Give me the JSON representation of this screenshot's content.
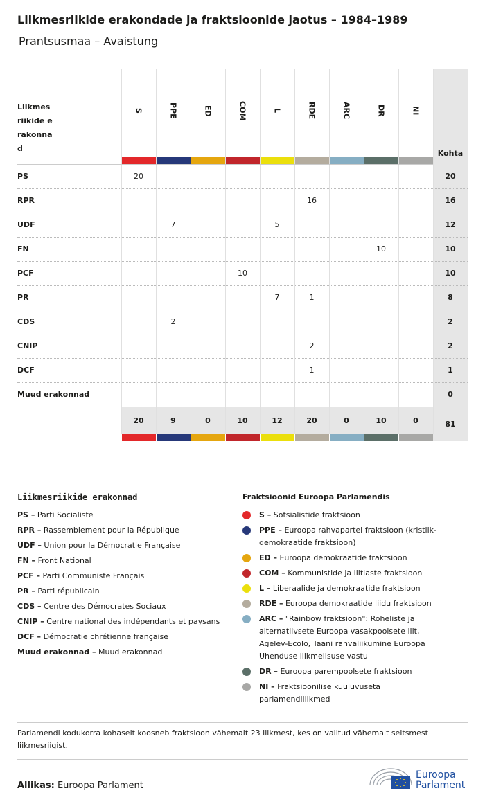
{
  "header": {
    "title": "Liikmesriikide erakondade ja fraktsioonide jaotus – 1984–1989",
    "subtitle": "Prantsusmaa – Avaistung"
  },
  "table": {
    "corner": "Liikmesriikide erakonnad",
    "total_header": "Kohta",
    "groups": [
      {
        "code": "S",
        "color": "#e3282a"
      },
      {
        "code": "PPE",
        "color": "#263879"
      },
      {
        "code": "ED",
        "color": "#e5a60f"
      },
      {
        "code": "COM",
        "color": "#c1262b"
      },
      {
        "code": "L",
        "color": "#ebdf0c"
      },
      {
        "code": "RDE",
        "color": "#b4ac9e"
      },
      {
        "code": "ARC",
        "color": "#86aec3"
      },
      {
        "code": "DR",
        "color": "#5b6f68"
      },
      {
        "code": "NI",
        "color": "#a8a8a6"
      }
    ],
    "rows": [
      {
        "party": "PS",
        "cells": [
          20,
          null,
          null,
          null,
          null,
          null,
          null,
          null,
          null
        ],
        "total": 20
      },
      {
        "party": "RPR",
        "cells": [
          null,
          null,
          null,
          null,
          null,
          16,
          null,
          null,
          null
        ],
        "total": 16
      },
      {
        "party": "UDF",
        "cells": [
          null,
          7,
          null,
          null,
          5,
          null,
          null,
          null,
          null
        ],
        "total": 12
      },
      {
        "party": "FN",
        "cells": [
          null,
          null,
          null,
          null,
          null,
          null,
          null,
          10,
          null
        ],
        "total": 10
      },
      {
        "party": "PCF",
        "cells": [
          null,
          null,
          null,
          10,
          null,
          null,
          null,
          null,
          null
        ],
        "total": 10
      },
      {
        "party": "PR",
        "cells": [
          null,
          null,
          null,
          null,
          7,
          1,
          null,
          null,
          null
        ],
        "total": 8
      },
      {
        "party": "CDS",
        "cells": [
          null,
          2,
          null,
          null,
          null,
          null,
          null,
          null,
          null
        ],
        "total": 2
      },
      {
        "party": "CNIP",
        "cells": [
          null,
          null,
          null,
          null,
          null,
          2,
          null,
          null,
          null
        ],
        "total": 2
      },
      {
        "party": "DCF",
        "cells": [
          null,
          null,
          null,
          null,
          null,
          1,
          null,
          null,
          null
        ],
        "total": 1
      },
      {
        "party": "Muud erakonnad",
        "cells": [
          null,
          null,
          null,
          null,
          null,
          null,
          null,
          null,
          null
        ],
        "total": 0
      }
    ],
    "totals": [
      20,
      9,
      0,
      10,
      12,
      20,
      0,
      10,
      0
    ],
    "grand_total": 81
  },
  "party_legend": {
    "title": "Liikmesriikide erakonnad",
    "items": [
      {
        "label": "PS –",
        "name": "Parti Socialiste"
      },
      {
        "label": "RPR –",
        "name": "Rassemblement pour la République"
      },
      {
        "label": "UDF –",
        "name": "Union pour la Démocratie Française"
      },
      {
        "label": "FN –",
        "name": "Front National"
      },
      {
        "label": "PCF –",
        "name": "Parti Communiste Français"
      },
      {
        "label": "PR –",
        "name": "Parti républicain"
      },
      {
        "label": "CDS –",
        "name": "Centre des Démocrates Sociaux"
      },
      {
        "label": "CNIP –",
        "name": "Centre national des indépendants et paysans"
      },
      {
        "label": "DCF –",
        "name": "Démocratie chrétienne française"
      },
      {
        "label": "Muud erakonnad –",
        "name": "Muud erakonnad"
      }
    ]
  },
  "group_legend": {
    "title": "Fraktsioonid Euroopa Parlamendis",
    "items": [
      {
        "label": "S –",
        "name": "Sotsialistide fraktsioon"
      },
      {
        "label": "PPE –",
        "name": "Euroopa rahvapartei fraktsioon (kristlik-demokraatide fraktsioon)"
      },
      {
        "label": "ED –",
        "name": "Euroopa demokraatide fraktsioon"
      },
      {
        "label": "COM –",
        "name": "Kommunistide ja liitlaste fraktsioon"
      },
      {
        "label": "L –",
        "name": "Liberaalide ja demokraatide fraktsioon"
      },
      {
        "label": "RDE –",
        "name": "Euroopa demokraatide liidu fraktsioon"
      },
      {
        "label": "ARC –",
        "name": "\"Rainbow fraktsioon\": Roheliste ja alternatiivsete Euroopa vasakpoolsete liit, Agelev-Ecolo, Taani rahvaliikumine Euroopa Ühenduse liikmelisuse vastu"
      },
      {
        "label": "DR –",
        "name": "Euroopa parempoolsete fraktsioon"
      },
      {
        "label": "NI –",
        "name": "Fraktsioonilise kuuluvuseta parlamendiliikmed"
      }
    ]
  },
  "footnote": "Parlamendi kodukorra kohaselt koosneb fraktsioon vähemalt 23 liikmest, kes on valitud vähemalt seitsmest liikmesriigist.",
  "source": {
    "label": "Allikas:",
    "text": "Euroopa Parlament"
  },
  "logo": [
    "Euroopa",
    "Parlament"
  ]
}
